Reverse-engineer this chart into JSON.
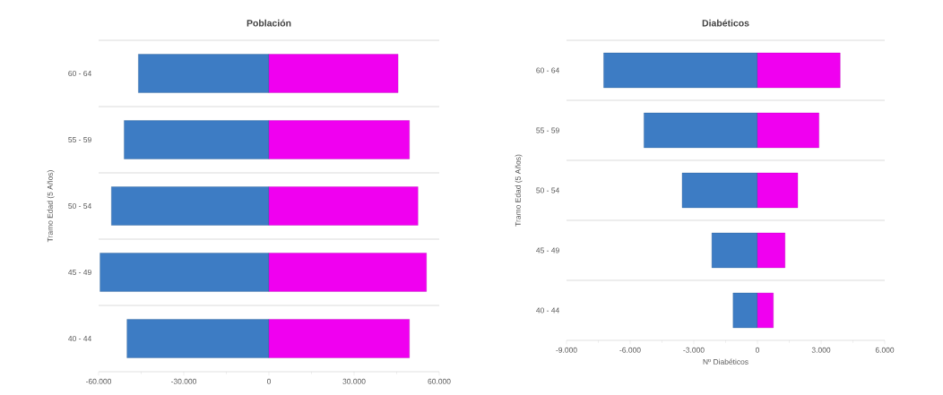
{
  "chart_data": [
    {
      "type": "bar",
      "orientation": "horizontal",
      "stacked": true,
      "title": "Población",
      "ylabel": "Tramo Edad (5 Años)",
      "categories": [
        "60 - 64",
        "55 - 59",
        "50 - 54",
        "45 - 49",
        "40 - 44"
      ],
      "series": [
        {
          "color": "#3d7cc4",
          "values": [
            -46000,
            -51000,
            -55500,
            -59500,
            -50000
          ]
        },
        {
          "color": "#f000f0",
          "values": [
            45500,
            49500,
            52500,
            55500,
            49500
          ]
        }
      ],
      "xlim": [
        -60000,
        60000
      ],
      "xticks": [
        {
          "value": -60000,
          "label": "-60.000"
        },
        {
          "value": -30000,
          "label": "-30.000"
        },
        0,
        {
          "value": 30000,
          "label": "30.000"
        },
        {
          "value": 60000,
          "label": "60.000"
        }
      ],
      "grid": "y"
    },
    {
      "type": "bar",
      "orientation": "horizontal",
      "stacked": true,
      "title": "Diabéticos",
      "xlabel": "Nº Diabéticos",
      "ylabel": "Tramo Edad (5 Años)",
      "categories": [
        "60 - 64",
        "55 - 59",
        "50 - 54",
        "45 - 49",
        "40 - 44"
      ],
      "series": [
        {
          "color": "#3d7cc4",
          "values": [
            -7250,
            -5350,
            -3550,
            -2150,
            -1150
          ]
        },
        {
          "color": "#f000f0",
          "values": [
            3900,
            2900,
            1900,
            1300,
            750
          ]
        }
      ],
      "xlim": [
        -9000,
        6000
      ],
      "xticks": [
        {
          "value": -9000,
          "label": "-9.000"
        },
        {
          "value": -6000,
          "label": "-6.000"
        },
        {
          "value": -3000,
          "label": "-3.000"
        },
        0,
        {
          "value": 3000,
          "label": "3.000"
        },
        {
          "value": 6000,
          "label": "6.000"
        }
      ],
      "grid": "y"
    }
  ]
}
